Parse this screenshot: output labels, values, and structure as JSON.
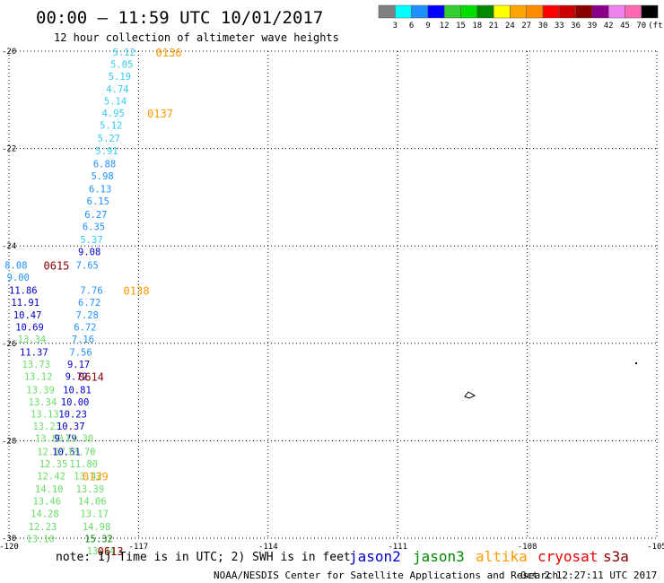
{
  "header": {
    "title": "00:00 – 11:59 UTC 10/01/2017",
    "subtitle": "12 hour collection of altimeter wave heights"
  },
  "legend": {
    "colors": [
      "#808080",
      "#00ffff",
      "#1e90ff",
      "#0000ff",
      "#32cd32",
      "#00dd00",
      "#008800",
      "#ffff00",
      "#ffa500",
      "#ff8c00",
      "#ff0000",
      "#cc0000",
      "#880000",
      "#8b008b",
      "#ee82ee",
      "#ff69b4",
      "#000000"
    ],
    "labels": [
      "3",
      "6",
      "9",
      "12",
      "15",
      "18",
      "21",
      "24",
      "27",
      "30",
      "33",
      "36",
      "39",
      "42",
      "45",
      "70",
      "(ft)"
    ]
  },
  "footer": {
    "note": "note: 1) Time is in UTC; 2) SWH is in feet",
    "credit": "NOAA/NESDIS Center for Satellite Applications and Research",
    "timestamp": "Oct  2 12:27:11 UTC 2017"
  },
  "chart_data": {
    "type": "scatter",
    "xlim": [
      -120,
      -105
    ],
    "ylim": [
      -30,
      -20
    ],
    "x_ticks": [
      "-120",
      "-117",
      "-114",
      "-111",
      "-108",
      "-105"
    ],
    "y_ticks": [
      "-20",
      "-22",
      "-24",
      "-26",
      "-28",
      "-30"
    ],
    "grid": "dotted",
    "satellites": [
      {
        "name": "jason2",
        "color": "#0000cc"
      },
      {
        "name": "jason3",
        "color": "#008800"
      },
      {
        "name": "altika",
        "color": "#ff9900"
      },
      {
        "name": "cryosat",
        "color": "#ee0000"
      },
      {
        "name": "s3a",
        "color": "#880000"
      }
    ],
    "points": [
      {
        "lon": -117.6,
        "lat": -20.02,
        "label": "5.12",
        "color": "#33ccee"
      },
      {
        "lon": -117.65,
        "lat": -20.27,
        "label": "5.05",
        "color": "#33ccee"
      },
      {
        "lon": -117.7,
        "lat": -20.52,
        "label": "5.19",
        "color": "#33ccee"
      },
      {
        "lon": -117.75,
        "lat": -20.77,
        "label": "4.74",
        "color": "#33ccee"
      },
      {
        "lon": -117.8,
        "lat": -21.02,
        "label": "5.14",
        "color": "#33ccee"
      },
      {
        "lon": -117.85,
        "lat": -21.27,
        "label": "4.95",
        "color": "#33ccee"
      },
      {
        "lon": -117.9,
        "lat": -21.52,
        "label": "5.12",
        "color": "#33ccee"
      },
      {
        "lon": -117.95,
        "lat": -21.79,
        "label": "5.27",
        "color": "#33ccee"
      },
      {
        "lon": -118.0,
        "lat": -22.04,
        "label": "5.91",
        "color": "#33ccee"
      },
      {
        "lon": -118.05,
        "lat": -22.31,
        "label": "6.88",
        "color": "#1e90ff"
      },
      {
        "lon": -118.1,
        "lat": -22.56,
        "label": "5.98",
        "color": "#1e90ff"
      },
      {
        "lon": -118.15,
        "lat": -22.83,
        "label": "6.13",
        "color": "#1e90ff"
      },
      {
        "lon": -118.2,
        "lat": -23.08,
        "label": "6.15",
        "color": "#1e90ff"
      },
      {
        "lon": -118.25,
        "lat": -23.35,
        "label": "6.27",
        "color": "#1e90ff"
      },
      {
        "lon": -118.3,
        "lat": -23.6,
        "label": "6.35",
        "color": "#1e90ff"
      },
      {
        "lon": -118.35,
        "lat": -23.87,
        "label": "5.37",
        "color": "#33ccee"
      },
      {
        "lon": -118.4,
        "lat": -24.12,
        "label": "9.08",
        "color": "#0000cc"
      },
      {
        "lon": -118.45,
        "lat": -24.39,
        "label": "7.65",
        "color": "#1e90ff"
      },
      {
        "lon": -120.1,
        "lat": -24.39,
        "label": "8.08",
        "color": "#1e90ff"
      },
      {
        "lon": -120.05,
        "lat": -24.64,
        "label": "9.00",
        "color": "#1e90ff"
      },
      {
        "lon": -120.0,
        "lat": -24.91,
        "label": "11.86",
        "color": "#0000cc"
      },
      {
        "lon": -119.95,
        "lat": -25.16,
        "label": "11.91",
        "color": "#0000cc"
      },
      {
        "lon": -119.9,
        "lat": -25.41,
        "label": "10.47",
        "color": "#0000cc"
      },
      {
        "lon": -119.85,
        "lat": -25.66,
        "label": "10.69",
        "color": "#0000cc"
      },
      {
        "lon": -119.8,
        "lat": -25.91,
        "label": "13.34",
        "color": "#66dd66"
      },
      {
        "lon": -119.75,
        "lat": -26.18,
        "label": "11.37",
        "color": "#0000cc"
      },
      {
        "lon": -119.7,
        "lat": -26.43,
        "label": "13.73",
        "color": "#66dd66"
      },
      {
        "lon": -119.65,
        "lat": -26.68,
        "label": "13.12",
        "color": "#66dd66"
      },
      {
        "lon": -119.6,
        "lat": -26.95,
        "label": "13.39",
        "color": "#66dd66"
      },
      {
        "lon": -119.55,
        "lat": -27.2,
        "label": "13.34",
        "color": "#66dd66"
      },
      {
        "lon": -119.5,
        "lat": -27.45,
        "label": "13.13",
        "color": "#66dd66"
      },
      {
        "lon": -119.45,
        "lat": -27.7,
        "label": "13.23",
        "color": "#66dd66"
      },
      {
        "lon": -119.4,
        "lat": -27.95,
        "label": "13.80",
        "color": "#66dd66"
      },
      {
        "lon": -119.35,
        "lat": -28.22,
        "label": "12.17",
        "color": "#66dd66"
      },
      {
        "lon": -119.3,
        "lat": -28.47,
        "label": "12.35",
        "color": "#66dd66"
      },
      {
        "lon": -119.35,
        "lat": -28.72,
        "label": "12.42",
        "color": "#66dd66"
      },
      {
        "lon": -119.4,
        "lat": -28.99,
        "label": "14.10",
        "color": "#66dd66"
      },
      {
        "lon": -119.45,
        "lat": -29.24,
        "label": "13.46",
        "color": "#66dd66"
      },
      {
        "lon": -119.5,
        "lat": -29.49,
        "label": "14.28",
        "color": "#66dd66"
      },
      {
        "lon": -119.55,
        "lat": -29.76,
        "label": "12.23",
        "color": "#66dd66"
      },
      {
        "lon": -119.6,
        "lat": -30.01,
        "label": "13.10",
        "color": "#66dd66"
      },
      {
        "lon": -118.35,
        "lat": -24.91,
        "label": "7.76",
        "color": "#1e90ff"
      },
      {
        "lon": -118.4,
        "lat": -25.16,
        "label": "6.72",
        "color": "#1e90ff"
      },
      {
        "lon": -118.45,
        "lat": -25.41,
        "label": "7.28",
        "color": "#1e90ff"
      },
      {
        "lon": -118.5,
        "lat": -25.66,
        "label": "6.72",
        "color": "#1e90ff"
      },
      {
        "lon": -118.55,
        "lat": -25.91,
        "label": "7.16",
        "color": "#1e90ff"
      },
      {
        "lon": -118.6,
        "lat": -26.18,
        "label": "7.56",
        "color": "#1e90ff"
      },
      {
        "lon": -118.65,
        "lat": -26.43,
        "label": "9.17",
        "color": "#0000cc"
      },
      {
        "lon": -118.7,
        "lat": -26.68,
        "label": "9.72",
        "color": "#0000cc"
      },
      {
        "lon": -118.75,
        "lat": -26.95,
        "label": "10.81",
        "color": "#0000cc"
      },
      {
        "lon": -118.8,
        "lat": -27.2,
        "label": "10.00",
        "color": "#0000cc"
      },
      {
        "lon": -118.85,
        "lat": -27.45,
        "label": "10.23",
        "color": "#0000cc"
      },
      {
        "lon": -118.9,
        "lat": -27.7,
        "label": "10.37",
        "color": "#0000cc"
      },
      {
        "lon": -118.95,
        "lat": -27.95,
        "label": "9.79",
        "color": "#0000cc"
      },
      {
        "lon": -119.0,
        "lat": -28.22,
        "label": "10.61",
        "color": "#0000cc"
      },
      {
        "lon": -118.7,
        "lat": -27.95,
        "label": "13.30",
        "color": "#66dd66"
      },
      {
        "lon": -118.65,
        "lat": -28.22,
        "label": "13.70",
        "color": "#66dd66"
      },
      {
        "lon": -118.6,
        "lat": -28.47,
        "label": "11.80",
        "color": "#66dd66"
      },
      {
        "lon": -118.5,
        "lat": -28.72,
        "label": "13.42",
        "color": "#66dd66"
      },
      {
        "lon": -118.45,
        "lat": -28.99,
        "label": "13.39",
        "color": "#66dd66"
      },
      {
        "lon": -118.4,
        "lat": -29.24,
        "label": "14.06",
        "color": "#66dd66"
      },
      {
        "lon": -118.35,
        "lat": -29.49,
        "label": "13.17",
        "color": "#66dd66"
      },
      {
        "lon": -118.3,
        "lat": -29.76,
        "label": "14.98",
        "color": "#66dd66"
      },
      {
        "lon": -118.25,
        "lat": -30.01,
        "label": "15.32",
        "color": "#008800"
      },
      {
        "lon": -118.2,
        "lat": -30.26,
        "label": "13.74",
        "color": "#66dd66"
      }
    ],
    "time_labels": [
      {
        "lon": -116.6,
        "lat": -20.02,
        "label": "0136",
        "color": "#ff9900"
      },
      {
        "lon": -116.8,
        "lat": -21.27,
        "label": "0137",
        "color": "#ff9900"
      },
      {
        "lon": -117.35,
        "lat": -24.91,
        "label": "0138",
        "color": "#ff9900"
      },
      {
        "lon": -119.2,
        "lat": -24.39,
        "label": "0615",
        "color": "#880000"
      },
      {
        "lon": -118.4,
        "lat": -26.68,
        "label": "0614",
        "color": "#880000"
      },
      {
        "lon": -118.3,
        "lat": -28.72,
        "label": "0139",
        "color": "#ff9900"
      },
      {
        "lon": -117.95,
        "lat": -30.26,
        "label": "0613",
        "color": "#880000"
      }
    ]
  }
}
